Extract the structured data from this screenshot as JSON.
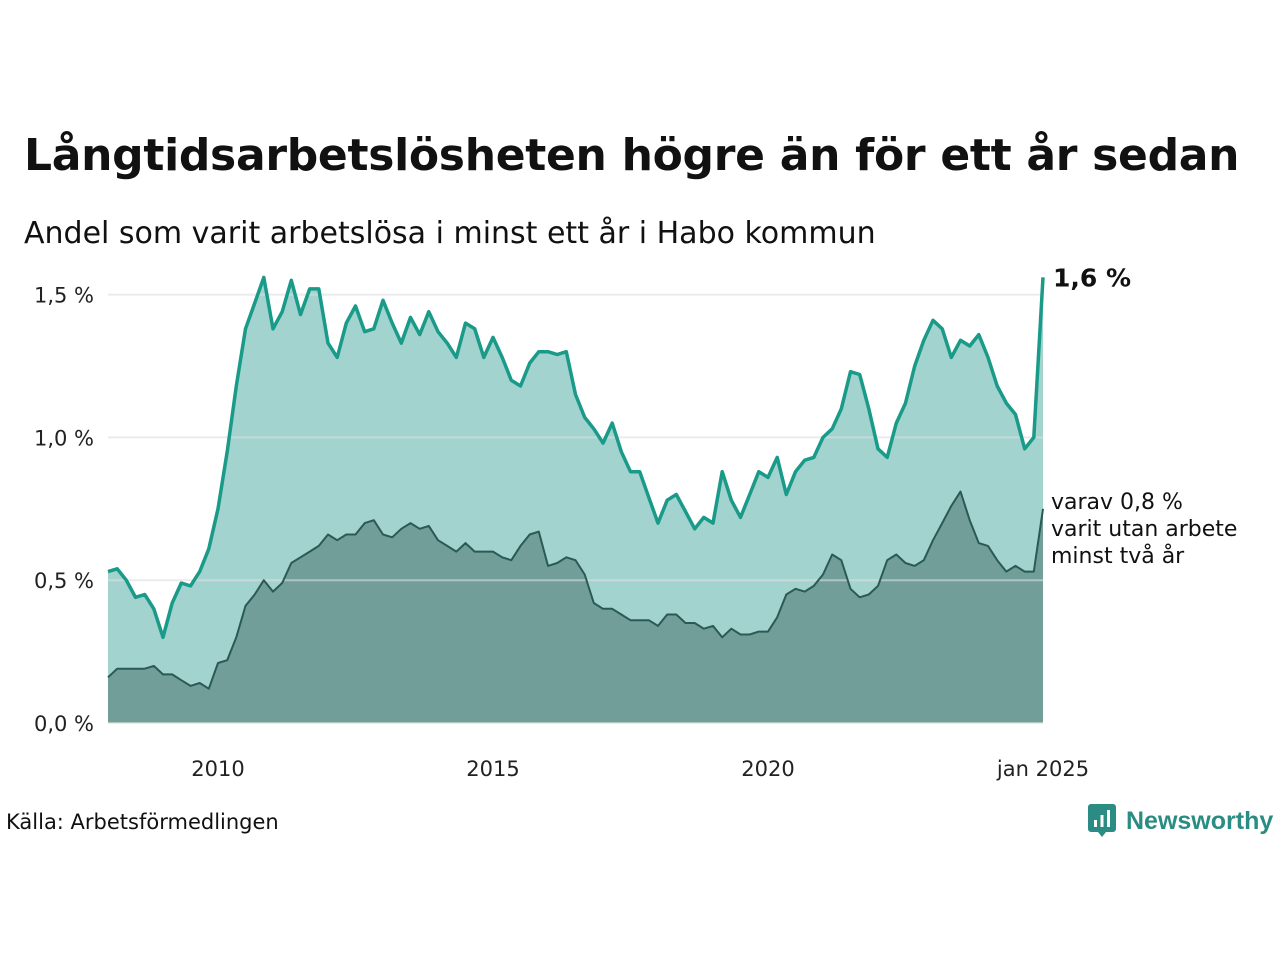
{
  "title": "Långtidsarbetslösheten högre än för ett år sedan",
  "subtitle": "Andel som varit arbetslösa i minst ett år i Habo kommun",
  "source": "Källa: Arbetsförmedlingen",
  "brand": {
    "name": "Newsworthy",
    "icon": "newsworthy-logo-icon"
  },
  "colors": {
    "main_line": "#1a9a88",
    "main_fill": "#a3d3cf",
    "sub_line": "#2b5a55",
    "sub_fill": "#719e98",
    "grid": "#dddddd",
    "brand": "#2a8c82"
  },
  "annotations": {
    "end_value": "1,6 %",
    "sub_label": [
      "varav 0,8 %",
      "varit utan arbete",
      "minst två år"
    ]
  },
  "chart_data": {
    "type": "area",
    "x_start": "2008-01",
    "x_end": "2025-01",
    "ylim": [
      0,
      1.6
    ],
    "y_ticks": [
      0,
      0.5,
      1.0,
      1.5
    ],
    "y_tick_labels": [
      "0,0 %",
      "0,5 %",
      "1,0 %",
      "1,5 %"
    ],
    "x_ticks": [
      "2010-01",
      "2015-01",
      "2020-01",
      "2025-01"
    ],
    "x_tick_labels": [
      "2010",
      "2015",
      "2020",
      "jan 2025"
    ],
    "grid": "horizontal",
    "series": [
      {
        "key": "long_term",
        "points": [
          [
            "2008-01",
            0.53
          ],
          [
            "2008-03",
            0.54
          ],
          [
            "2008-05",
            0.5
          ],
          [
            "2008-07",
            0.44
          ],
          [
            "2008-09",
            0.45
          ],
          [
            "2008-11",
            0.4
          ],
          [
            "2009-01",
            0.3
          ],
          [
            "2009-03",
            0.42
          ],
          [
            "2009-05",
            0.49
          ],
          [
            "2009-07",
            0.48
          ],
          [
            "2009-09",
            0.53
          ],
          [
            "2009-11",
            0.61
          ],
          [
            "2010-01",
            0.75
          ],
          [
            "2010-03",
            0.95
          ],
          [
            "2010-05",
            1.18
          ],
          [
            "2010-07",
            1.38
          ],
          [
            "2010-09",
            1.47
          ],
          [
            "2010-11",
            1.56
          ],
          [
            "2011-01",
            1.38
          ],
          [
            "2011-03",
            1.44
          ],
          [
            "2011-05",
            1.55
          ],
          [
            "2011-07",
            1.43
          ],
          [
            "2011-09",
            1.52
          ],
          [
            "2011-11",
            1.52
          ],
          [
            "2012-01",
            1.33
          ],
          [
            "2012-03",
            1.28
          ],
          [
            "2012-05",
            1.4
          ],
          [
            "2012-07",
            1.46
          ],
          [
            "2012-09",
            1.37
          ],
          [
            "2012-11",
            1.38
          ],
          [
            "2013-01",
            1.48
          ],
          [
            "2013-03",
            1.4
          ],
          [
            "2013-05",
            1.33
          ],
          [
            "2013-07",
            1.42
          ],
          [
            "2013-09",
            1.36
          ],
          [
            "2013-11",
            1.44
          ],
          [
            "2014-01",
            1.37
          ],
          [
            "2014-03",
            1.33
          ],
          [
            "2014-05",
            1.28
          ],
          [
            "2014-07",
            1.4
          ],
          [
            "2014-09",
            1.38
          ],
          [
            "2014-11",
            1.28
          ],
          [
            "2015-01",
            1.35
          ],
          [
            "2015-03",
            1.28
          ],
          [
            "2015-05",
            1.2
          ],
          [
            "2015-07",
            1.18
          ],
          [
            "2015-09",
            1.26
          ],
          [
            "2015-11",
            1.3
          ],
          [
            "2016-01",
            1.3
          ],
          [
            "2016-03",
            1.29
          ],
          [
            "2016-05",
            1.3
          ],
          [
            "2016-07",
            1.15
          ],
          [
            "2016-09",
            1.07
          ],
          [
            "2016-11",
            1.03
          ],
          [
            "2017-01",
            0.98
          ],
          [
            "2017-03",
            1.05
          ],
          [
            "2017-05",
            0.95
          ],
          [
            "2017-07",
            0.88
          ],
          [
            "2017-09",
            0.88
          ],
          [
            "2017-11",
            0.79
          ],
          [
            "2018-01",
            0.7
          ],
          [
            "2018-03",
            0.78
          ],
          [
            "2018-05",
            0.8
          ],
          [
            "2018-07",
            0.74
          ],
          [
            "2018-09",
            0.68
          ],
          [
            "2018-11",
            0.72
          ],
          [
            "2019-01",
            0.7
          ],
          [
            "2019-03",
            0.88
          ],
          [
            "2019-05",
            0.78
          ],
          [
            "2019-07",
            0.72
          ],
          [
            "2019-09",
            0.8
          ],
          [
            "2019-11",
            0.88
          ],
          [
            "2020-01",
            0.86
          ],
          [
            "2020-03",
            0.93
          ],
          [
            "2020-05",
            0.8
          ],
          [
            "2020-07",
            0.88
          ],
          [
            "2020-09",
            0.92
          ],
          [
            "2020-11",
            0.93
          ],
          [
            "2021-01",
            1.0
          ],
          [
            "2021-03",
            1.03
          ],
          [
            "2021-05",
            1.1
          ],
          [
            "2021-07",
            1.23
          ],
          [
            "2021-09",
            1.22
          ],
          [
            "2021-11",
            1.1
          ],
          [
            "2022-01",
            0.96
          ],
          [
            "2022-03",
            0.93
          ],
          [
            "2022-05",
            1.05
          ],
          [
            "2022-07",
            1.12
          ],
          [
            "2022-09",
            1.25
          ],
          [
            "2022-11",
            1.34
          ],
          [
            "2023-01",
            1.41
          ],
          [
            "2023-03",
            1.38
          ],
          [
            "2023-05",
            1.28
          ],
          [
            "2023-07",
            1.34
          ],
          [
            "2023-09",
            1.32
          ],
          [
            "2023-11",
            1.36
          ],
          [
            "2024-01",
            1.28
          ],
          [
            "2024-03",
            1.18
          ],
          [
            "2024-05",
            1.12
          ],
          [
            "2024-07",
            1.08
          ],
          [
            "2024-09",
            0.96
          ],
          [
            "2024-11",
            1.0
          ],
          [
            "2025-01",
            1.56
          ]
        ]
      },
      {
        "key": "very_long_term",
        "points": [
          [
            "2008-01",
            0.16
          ],
          [
            "2008-03",
            0.19
          ],
          [
            "2008-05",
            0.19
          ],
          [
            "2008-07",
            0.19
          ],
          [
            "2008-09",
            0.19
          ],
          [
            "2008-11",
            0.2
          ],
          [
            "2009-01",
            0.17
          ],
          [
            "2009-03",
            0.17
          ],
          [
            "2009-05",
            0.15
          ],
          [
            "2009-07",
            0.13
          ],
          [
            "2009-09",
            0.14
          ],
          [
            "2009-11",
            0.12
          ],
          [
            "2010-01",
            0.21
          ],
          [
            "2010-03",
            0.22
          ],
          [
            "2010-05",
            0.3
          ],
          [
            "2010-07",
            0.41
          ],
          [
            "2010-09",
            0.45
          ],
          [
            "2010-11",
            0.5
          ],
          [
            "2011-01",
            0.46
          ],
          [
            "2011-03",
            0.49
          ],
          [
            "2011-05",
            0.56
          ],
          [
            "2011-07",
            0.58
          ],
          [
            "2011-09",
            0.6
          ],
          [
            "2011-11",
            0.62
          ],
          [
            "2012-01",
            0.66
          ],
          [
            "2012-03",
            0.64
          ],
          [
            "2012-05",
            0.66
          ],
          [
            "2012-07",
            0.66
          ],
          [
            "2012-09",
            0.7
          ],
          [
            "2012-11",
            0.71
          ],
          [
            "2013-01",
            0.66
          ],
          [
            "2013-03",
            0.65
          ],
          [
            "2013-05",
            0.68
          ],
          [
            "2013-07",
            0.7
          ],
          [
            "2013-09",
            0.68
          ],
          [
            "2013-11",
            0.69
          ],
          [
            "2014-01",
            0.64
          ],
          [
            "2014-03",
            0.62
          ],
          [
            "2014-05",
            0.6
          ],
          [
            "2014-07",
            0.63
          ],
          [
            "2014-09",
            0.6
          ],
          [
            "2014-11",
            0.6
          ],
          [
            "2015-01",
            0.6
          ],
          [
            "2015-03",
            0.58
          ],
          [
            "2015-05",
            0.57
          ],
          [
            "2015-07",
            0.62
          ],
          [
            "2015-09",
            0.66
          ],
          [
            "2015-11",
            0.67
          ],
          [
            "2016-01",
            0.55
          ],
          [
            "2016-03",
            0.56
          ],
          [
            "2016-05",
            0.58
          ],
          [
            "2016-07",
            0.57
          ],
          [
            "2016-09",
            0.52
          ],
          [
            "2016-11",
            0.42
          ],
          [
            "2017-01",
            0.4
          ],
          [
            "2017-03",
            0.4
          ],
          [
            "2017-05",
            0.38
          ],
          [
            "2017-07",
            0.36
          ],
          [
            "2017-09",
            0.36
          ],
          [
            "2017-11",
            0.36
          ],
          [
            "2018-01",
            0.34
          ],
          [
            "2018-03",
            0.38
          ],
          [
            "2018-05",
            0.38
          ],
          [
            "2018-07",
            0.35
          ],
          [
            "2018-09",
            0.35
          ],
          [
            "2018-11",
            0.33
          ],
          [
            "2019-01",
            0.34
          ],
          [
            "2019-03",
            0.3
          ],
          [
            "2019-05",
            0.33
          ],
          [
            "2019-07",
            0.31
          ],
          [
            "2019-09",
            0.31
          ],
          [
            "2019-11",
            0.32
          ],
          [
            "2020-01",
            0.32
          ],
          [
            "2020-03",
            0.37
          ],
          [
            "2020-05",
            0.45
          ],
          [
            "2020-07",
            0.47
          ],
          [
            "2020-09",
            0.46
          ],
          [
            "2020-11",
            0.48
          ],
          [
            "2021-01",
            0.52
          ],
          [
            "2021-03",
            0.59
          ],
          [
            "2021-05",
            0.57
          ],
          [
            "2021-07",
            0.47
          ],
          [
            "2021-09",
            0.44
          ],
          [
            "2021-11",
            0.45
          ],
          [
            "2022-01",
            0.48
          ],
          [
            "2022-03",
            0.57
          ],
          [
            "2022-05",
            0.59
          ],
          [
            "2022-07",
            0.56
          ],
          [
            "2022-09",
            0.55
          ],
          [
            "2022-11",
            0.57
          ],
          [
            "2023-01",
            0.64
          ],
          [
            "2023-03",
            0.7
          ],
          [
            "2023-05",
            0.76
          ],
          [
            "2023-07",
            0.81
          ],
          [
            "2023-09",
            0.71
          ],
          [
            "2023-11",
            0.63
          ],
          [
            "2024-01",
            0.62
          ],
          [
            "2024-03",
            0.57
          ],
          [
            "2024-05",
            0.53
          ],
          [
            "2024-07",
            0.55
          ],
          [
            "2024-09",
            0.53
          ],
          [
            "2024-11",
            0.53
          ],
          [
            "2025-01",
            0.75
          ]
        ]
      }
    ]
  }
}
